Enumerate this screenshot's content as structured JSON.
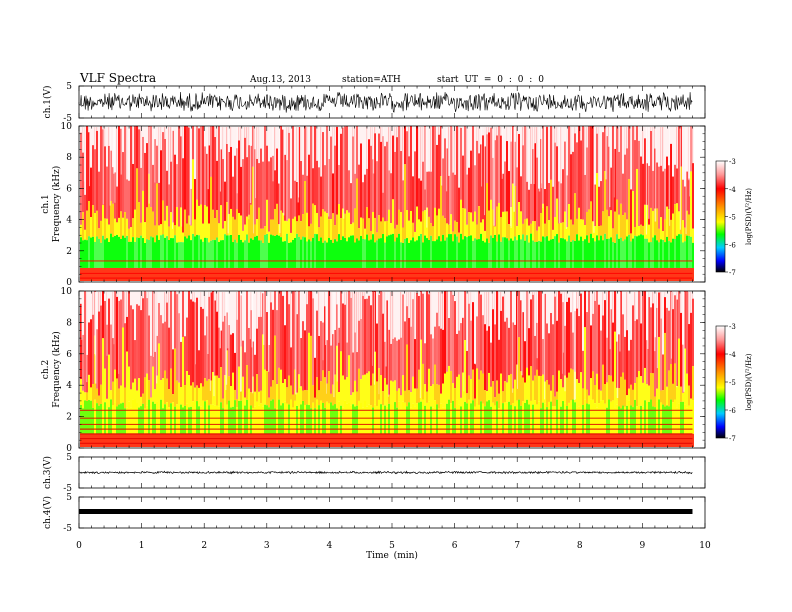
{
  "header": {
    "title": "VLF Spectra",
    "date": "Aug.13, 2013",
    "station": "station=ATH",
    "start": "start UT = 0 : 0 : 0"
  },
  "colors": {
    "background": "#ffffff",
    "axis": "#000000",
    "spectrogram_low": "#00ff00",
    "spectrogram_mid": "#ffff00",
    "spectrogram_high": "#ff0000"
  },
  "colorbar": {
    "label": "log(PSD)(V²/Hz)",
    "ticks": [
      "-3",
      "-4",
      "-5",
      "-6",
      "-7"
    ]
  },
  "chart_data": [
    {
      "type": "line",
      "panel": "ch1-waveform",
      "ylabel": "ch.1(V)",
      "ylim": [
        -5,
        5
      ],
      "yticks": [
        "5",
        "-5"
      ],
      "xlim": [
        0,
        10
      ]
    },
    {
      "type": "heatmap",
      "panel": "ch1-spectrogram",
      "ylabel_top": "ch.1",
      "ylabel": "Frequency (kHz)",
      "ylim": [
        0,
        10
      ],
      "yticks": [
        "0",
        "2",
        "4",
        "6",
        "8",
        "10"
      ],
      "xlim": [
        0,
        10
      ],
      "data_end_min": 9.8
    },
    {
      "type": "heatmap",
      "panel": "ch2-spectrogram",
      "ylabel_top": "ch.2",
      "ylabel": "Frequency (kHz)",
      "ylim": [
        0,
        10
      ],
      "yticks": [
        "0",
        "2",
        "4",
        "6",
        "8",
        "10"
      ],
      "xlim": [
        0,
        10
      ],
      "data_end_min": 9.8
    },
    {
      "type": "line",
      "panel": "ch3-waveform",
      "ylabel": "ch.3(V)",
      "ylim": [
        -5,
        5
      ],
      "yticks": [
        "5",
        "-5"
      ],
      "xlim": [
        0,
        10
      ]
    },
    {
      "type": "line",
      "panel": "ch4-waveform",
      "ylabel": "ch.4(V)",
      "ylim": [
        -5,
        5
      ],
      "yticks": [
        "5",
        "-5"
      ],
      "xlim": [
        0,
        10
      ],
      "xlabel": "Time (min)",
      "xticks": [
        "0",
        "1",
        "2",
        "3",
        "4",
        "5",
        "6",
        "7",
        "8",
        "9",
        "10"
      ]
    }
  ]
}
